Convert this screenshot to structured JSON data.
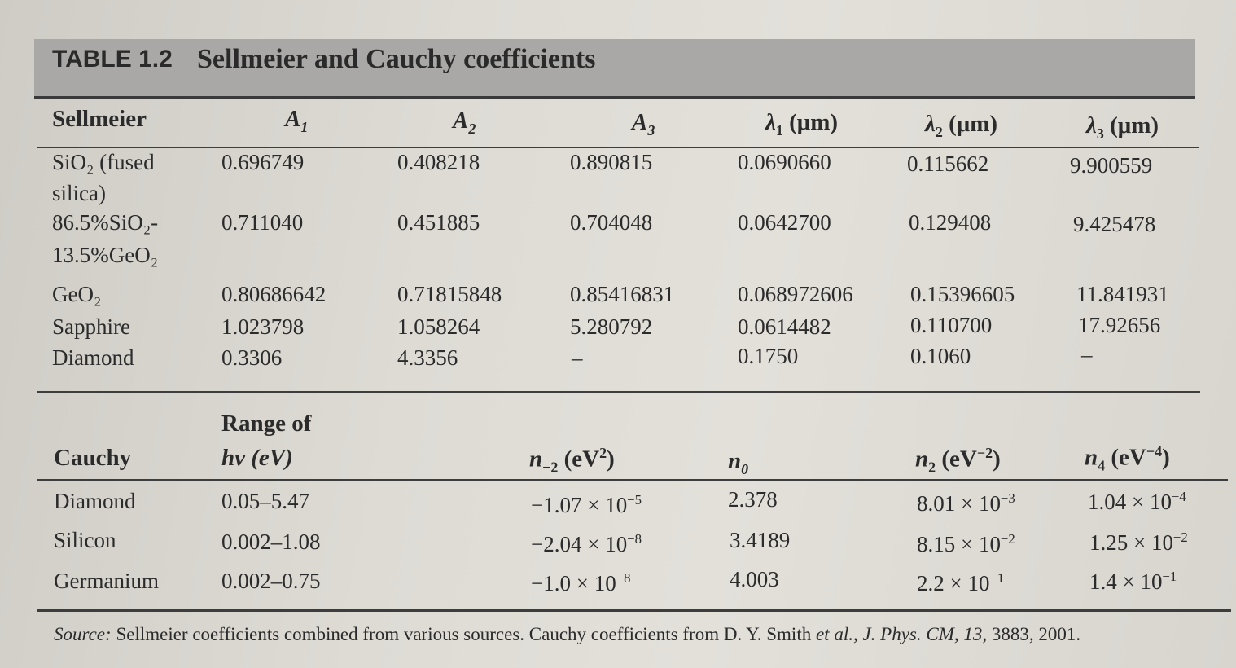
{
  "table": {
    "label": "TABLE 1.2",
    "title": "Sellmeier and Cauchy coefficients"
  },
  "sellmeier": {
    "headers": {
      "name": "Sellmeier",
      "a1": "A",
      "a1_sub": "1",
      "a2": "A",
      "a2_sub": "2",
      "a3": "A",
      "a3_sub": "3",
      "l1": "λ",
      "l1_sub": "1",
      "l1_unit": " (μm)",
      "l2": "λ",
      "l2_sub": "2",
      "l2_unit": " (μm)",
      "l3": "λ",
      "l3_sub": "3",
      "l3_unit": " (μm)"
    },
    "rows": [
      {
        "name_line1": "SiO₂ (fused",
        "name_line2": "silica)",
        "a1": "0.696749",
        "a2": "0.408218",
        "a3": "0.890815",
        "l1": "0.0690660",
        "l2": "0.115662",
        "l3": "9.900559"
      },
      {
        "name_line1": "86.5%SiO₂-",
        "name_line2": "13.5%GeO₂",
        "a1": "0.711040",
        "a2": "0.451885",
        "a3": "0.704048",
        "l1": "0.0642700",
        "l2": "0.129408",
        "l3": "9.425478"
      },
      {
        "name_line1": "GeO₂",
        "a1": "0.80686642",
        "a2": "0.71815848",
        "a3": "0.85416831",
        "l1": "0.068972606",
        "l2": "0.15396605",
        "l3": "11.841931"
      },
      {
        "name_line1": "Sapphire",
        "a1": "1.023798",
        "a2": "1.058264",
        "a3": "5.280792",
        "l1": "0.0614482",
        "l2": "0.110700",
        "l3": "17.92656"
      },
      {
        "name_line1": "Diamond",
        "a1": "0.3306",
        "a2": "4.3356",
        "a3": "–",
        "l1": "0.1750",
        "l2": "0.1060",
        "l3": "–"
      }
    ]
  },
  "cauchy": {
    "headers": {
      "name": "Cauchy",
      "range_line1": "Range of",
      "range_line2": "hν (eV)",
      "nm2": "n",
      "nm2_sub": "−2",
      "nm2_unit": " (eV",
      "nm2_sup": "2",
      "nm2_close": ")",
      "n0": "n",
      "n0_sub": "0",
      "n2": "n",
      "n2_sub": "2",
      "n2_unit": " (eV",
      "n2_sup": "−2",
      "n2_close": ")",
      "n4": "n",
      "n4_sub": "4",
      "n4_unit": " (eV",
      "n4_sup": "−4",
      "n4_close": ")"
    },
    "rows": [
      {
        "name": "Diamond",
        "range": "0.05–5.47",
        "nm2": "−1.07 × 10",
        "nm2_exp": "−5",
        "n0": "2.378",
        "n2": "8.01 × 10",
        "n2_exp": "−3",
        "n4": "1.04 × 10",
        "n4_exp": "−4"
      },
      {
        "name": "Silicon",
        "range": "0.002–1.08",
        "nm2": "−2.04 × 10",
        "nm2_exp": "−8",
        "n0": "3.4189",
        "n2": "8.15 × 10",
        "n2_exp": "−2",
        "n4": "1.25 × 10",
        "n4_exp": "−2"
      },
      {
        "name": "Germanium",
        "range": "0.002–0.75",
        "nm2": "−1.0 × 10",
        "nm2_exp": "−8",
        "n0": "4.003",
        "n2": "2.2 × 10",
        "n2_exp": "−1",
        "n4": "1.4 × 10",
        "n4_exp": "−1"
      }
    ]
  },
  "source": {
    "label": "Source:",
    "text_a": " Sellmeier coefficients combined from various sources. Cauchy coefficients from D. Y. Smith ",
    "etal": "et al.",
    "text_b": ", ",
    "journal": "J. Phys. CM",
    "text_c": ", ",
    "volume": "13",
    "text_d": ", 3883, 2001."
  }
}
